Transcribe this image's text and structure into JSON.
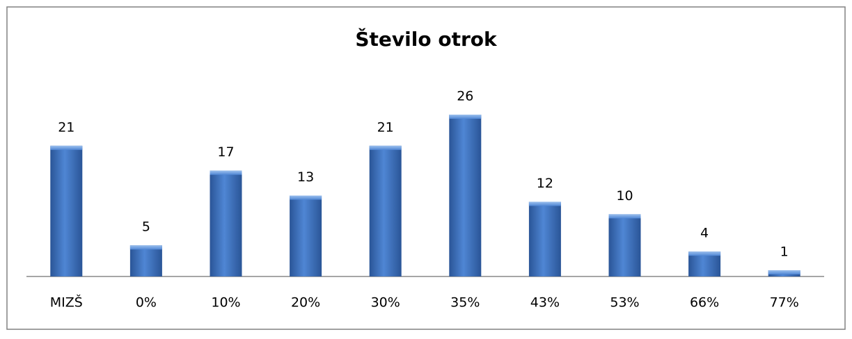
{
  "chart_data": {
    "type": "bar",
    "title": "Število otrok",
    "categories": [
      "MIZŠ",
      "0%",
      "10%",
      "20%",
      "30%",
      "35%",
      "43%",
      "53%",
      "66%",
      "77%"
    ],
    "values": [
      21,
      5,
      17,
      13,
      21,
      26,
      12,
      10,
      4,
      1
    ],
    "color": "#3a6fc0"
  }
}
